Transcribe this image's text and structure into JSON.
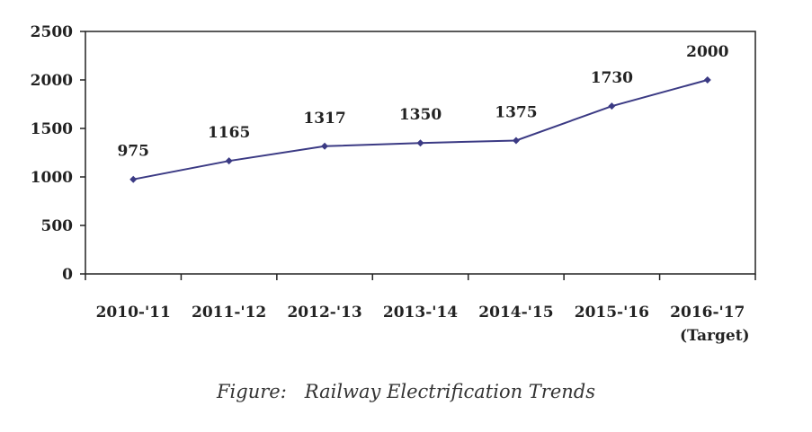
{
  "caption": "Figure:   Railway Electrification Trends",
  "colors": {
    "line": "#3b3a84",
    "axis": "#222222",
    "text": "#222222"
  },
  "chart_data": {
    "type": "line",
    "title": "",
    "xlabel": "",
    "ylabel": "",
    "categories": [
      "2010-'11",
      "2011-'12",
      "2012-'13",
      "2013-'14",
      "2014-'15",
      "2015-'16",
      "2016-'17"
    ],
    "category_sublabels": [
      "",
      "",
      "",
      "",
      "",
      "",
      "(Target)"
    ],
    "series": [
      {
        "values": [
          975,
          1165,
          1317,
          1350,
          1375,
          1730,
          2000
        ],
        "data_labels": [
          "975",
          "1165",
          "1317",
          "1350",
          "1375",
          "1730",
          "2000"
        ]
      }
    ],
    "ylim": [
      0,
      2500
    ],
    "yticks": [
      0,
      500,
      1000,
      1500,
      2000,
      2500
    ],
    "grid": false,
    "legend": "none"
  }
}
